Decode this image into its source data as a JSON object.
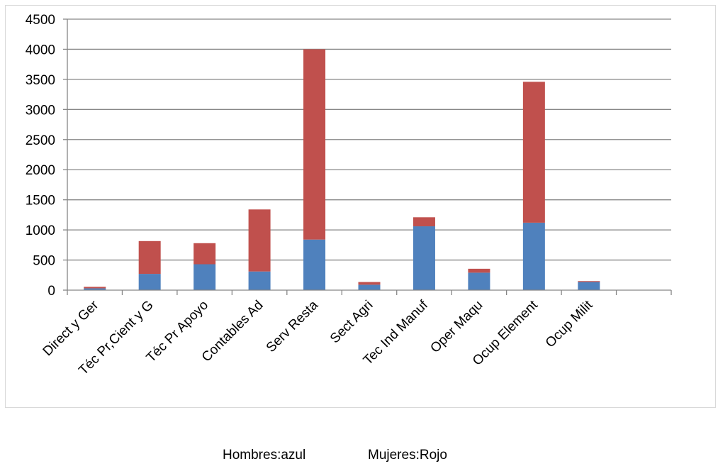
{
  "chart_data": {
    "type": "bar",
    "stacked": true,
    "categories": [
      "Direct y Ger",
      "Téc Pr,Cient y G",
      "Téc Pr Apoyo",
      "Contables Ad",
      "Serv Resta",
      "Sect Agri",
      "Tec Ind Manuf",
      "Oper Maqu",
      "Ocup Element",
      "Ocup Milit",
      ""
    ],
    "series": [
      {
        "color": "#4f81bd",
        "values": [
          30,
          270,
          430,
          310,
          840,
          90,
          1060,
          290,
          1120,
          135,
          0
        ]
      },
      {
        "color": "#c0504d",
        "values": [
          25,
          545,
          350,
          1030,
          3160,
          45,
          150,
          65,
          2340,
          15,
          0
        ]
      }
    ],
    "ylim": [
      0,
      4500
    ],
    "yticks": [
      "0",
      "500",
      "1000",
      "1500",
      "2000",
      "2500",
      "3000",
      "3500",
      "4000",
      "4500"
    ],
    "grid": true,
    "title": "",
    "xlabel": "",
    "ylabel": ""
  },
  "legend_note": {
    "men": "Hombres:azul",
    "women": "Mujeres:Rojo"
  }
}
